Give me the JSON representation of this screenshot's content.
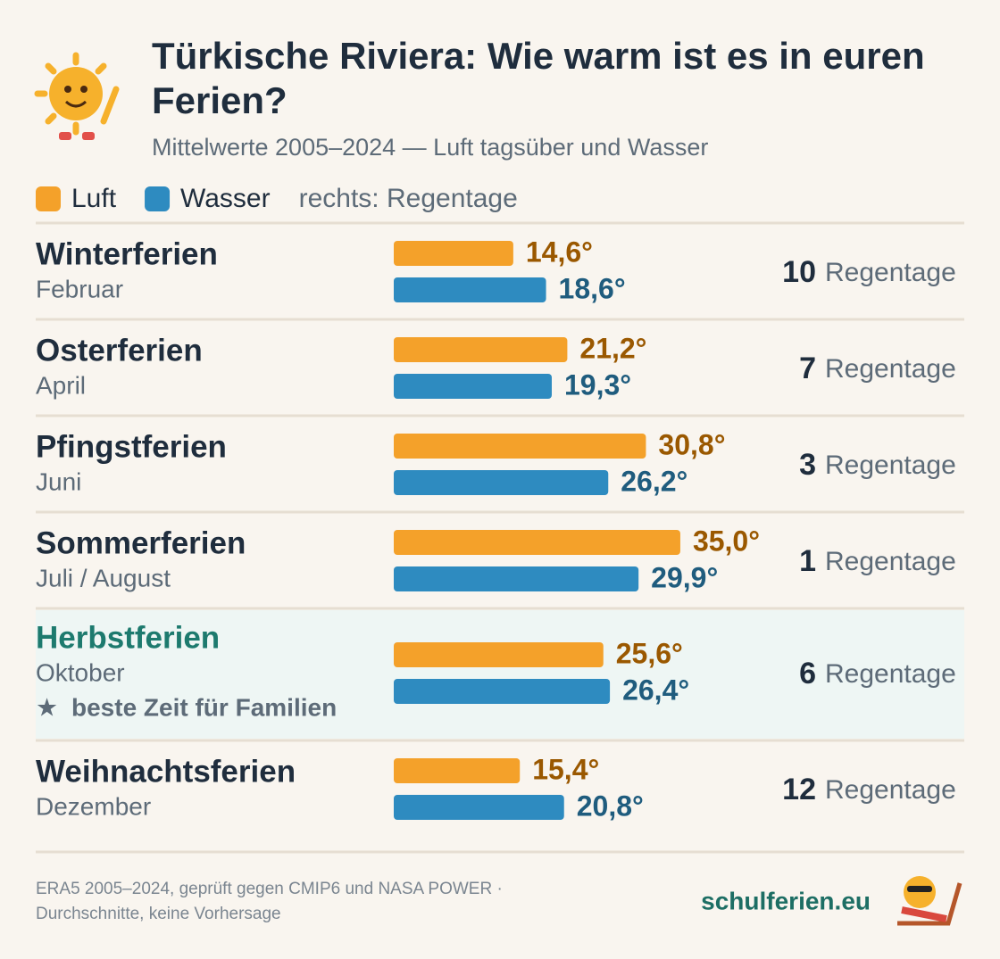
{
  "chart_data": {
    "type": "bar",
    "orientation": "horizontal",
    "title": "Türkische Riviera: Wie warm ist es in euren Ferien?",
    "subtitle": "Mittelwerte 2005–2024 — Luft tagsüber und Wasser",
    "legend_note": "rechts: Regentage",
    "categories": [
      "Winterferien",
      "Osterferien",
      "Pfingstferien",
      "Sommerferien",
      "Herbstferien",
      "Weihnachtsferien"
    ],
    "category_sublabels": [
      "Februar",
      "April",
      "Juni",
      "Juli / August",
      "Oktober",
      "Dezember"
    ],
    "highlight": {
      "index": 4,
      "note": "beste Zeit für Familien",
      "color": "#1d7a6e",
      "background": "#eef6f4"
    },
    "series": [
      {
        "name": "Luft",
        "color": "#f4a12a",
        "label_color": "#9a5800",
        "values": [
          14.6,
          21.2,
          30.8,
          35.0,
          25.6,
          15.4
        ],
        "value_labels": [
          "14,6°",
          "21,2°",
          "30,8°",
          "35,0°",
          "25,6°",
          "15,4°"
        ]
      },
      {
        "name": "Wasser",
        "color": "#2e8bc0",
        "label_color": "#1f5c7e",
        "values": [
          18.6,
          19.3,
          26.2,
          29.9,
          26.4,
          20.8
        ],
        "value_labels": [
          "18,6°",
          "19,3°",
          "26,2°",
          "29,9°",
          "26,4°",
          "20,8°"
        ]
      }
    ],
    "rain_days": {
      "values": [
        10,
        7,
        3,
        1,
        6,
        12
      ],
      "unit": "Regentage"
    },
    "source": [
      "ERA5 2005–2024, geprüft gegen CMIP6 und NASA POWER ·",
      "Durchschnitte, keine Vorhersage"
    ],
    "brand": "schulferien.eu"
  }
}
